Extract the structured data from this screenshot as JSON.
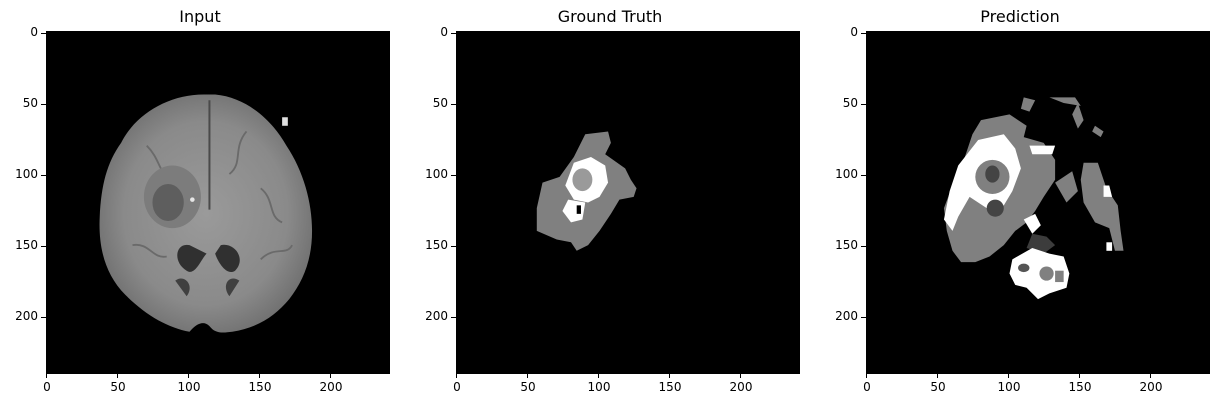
{
  "figure": {
    "panels": [
      {
        "title": "Input"
      },
      {
        "title": "Ground Truth"
      },
      {
        "title": "Prediction"
      }
    ],
    "x_ticks": [
      "0",
      "50",
      "100",
      "150",
      "200"
    ],
    "y_ticks": [
      "0",
      "50",
      "100",
      "150",
      "200"
    ],
    "axis_max": 240
  }
}
